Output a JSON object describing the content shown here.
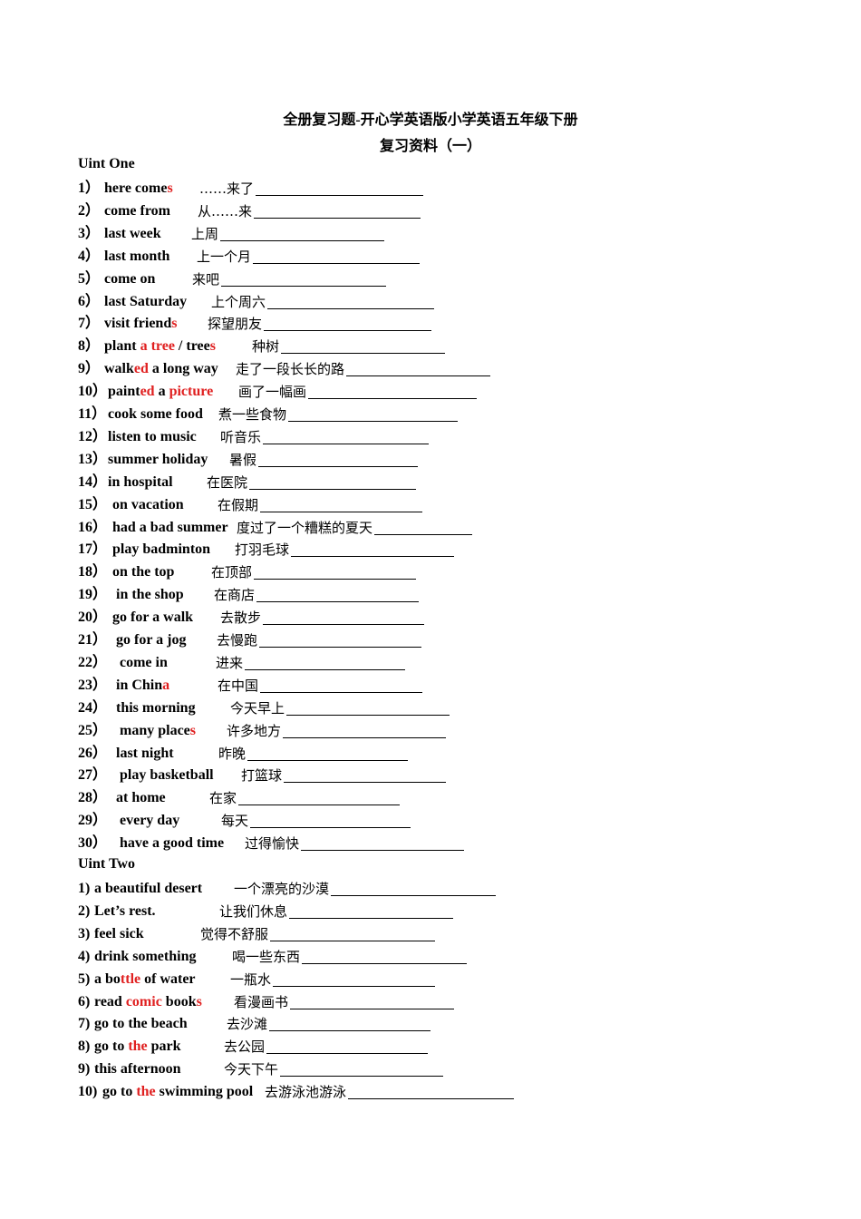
{
  "title": "全册复习题-开心学英语版小学英语五年级下册",
  "subtitle": "复习资料（一）",
  "colors": {
    "highlight": "#e02020",
    "text": "#000000"
  },
  "units": [
    {
      "heading": "Uint One",
      "items": [
        {
          "num": "1）",
          "en": [
            [
              "here come",
              0
            ],
            [
              "s",
              1
            ]
          ],
          "cn": "……来了"
        },
        {
          "num": "2）",
          "en": [
            [
              "come from",
              0
            ]
          ],
          "cn": "从……来"
        },
        {
          "num": "3）",
          "en": [
            [
              "last week",
              0
            ]
          ],
          "cn": "上周"
        },
        {
          "num": "4）",
          "en": [
            [
              "last month",
              0
            ]
          ],
          "cn": "上一个月"
        },
        {
          "num": "5）",
          "en": [
            [
              "come on",
              0
            ]
          ],
          "cn": "来吧"
        },
        {
          "num": "6）",
          "en": [
            [
              "last Saturday",
              0
            ]
          ],
          "cn": "上个周六"
        },
        {
          "num": "7）",
          "en": [
            [
              "visit friend",
              0
            ],
            [
              "s",
              1
            ]
          ],
          "cn": "探望朋友"
        },
        {
          "num": "8）",
          "en": [
            [
              "plant ",
              0
            ],
            [
              "a tree",
              1
            ],
            [
              " / tree",
              0
            ],
            [
              "s",
              1
            ]
          ],
          "cn": "种树"
        },
        {
          "num": "9）",
          "en": [
            [
              "walk",
              0
            ],
            [
              "ed",
              1
            ],
            [
              " a long way",
              0
            ]
          ],
          "cn": "走了一段长长的路"
        },
        {
          "num": "10）",
          "en": [
            [
              "paint",
              0
            ],
            [
              "ed",
              1
            ],
            [
              " a ",
              0
            ],
            [
              "picture",
              1
            ]
          ],
          "cn": "画了一幅画"
        },
        {
          "num": "11）",
          "en": [
            [
              "cook some food",
              0
            ]
          ],
          "cn": "煮一些食物"
        },
        {
          "num": "12）",
          "en": [
            [
              "listen to music",
              0
            ]
          ],
          "cn": "听音乐"
        },
        {
          "num": "13）",
          "en": [
            [
              "summer holiday",
              0
            ]
          ],
          "cn": "暑假"
        },
        {
          "num": "14）",
          "en": [
            [
              "in hospital",
              0
            ]
          ],
          "cn": "在医院"
        },
        {
          "num": "15）",
          "en": [
            [
              "on vacation",
              0
            ]
          ],
          "cn": "在假期"
        },
        {
          "num": "16）",
          "en": [
            [
              "had a bad summer",
              0
            ]
          ],
          "cn": "度过了一个糟糕的夏天"
        },
        {
          "num": "17）",
          "en": [
            [
              "play badminton",
              0
            ]
          ],
          "cn": "打羽毛球"
        },
        {
          "num": "18）",
          "en": [
            [
              "on the top",
              0
            ]
          ],
          "cn": "在顶部"
        },
        {
          "num": "19）",
          "en": [
            [
              "in the shop",
              0
            ]
          ],
          "cn": "在商店"
        },
        {
          "num": "20）",
          "en": [
            [
              "go for a walk",
              0
            ]
          ],
          "cn": "去散步"
        },
        {
          "num": "21）",
          "en": [
            [
              "go for a jog",
              0
            ]
          ],
          "cn": "去慢跑"
        },
        {
          "num": "22）",
          "en": [
            [
              "come in",
              0
            ]
          ],
          "cn": "进来"
        },
        {
          "num": "23）",
          "en": [
            [
              "in Chin",
              0
            ],
            [
              "a",
              1
            ]
          ],
          "cn": "在中国"
        },
        {
          "num": "24）",
          "en": [
            [
              "this morning",
              0
            ]
          ],
          "cn": "今天早上"
        },
        {
          "num": "25）",
          "en": [
            [
              "many place",
              0
            ],
            [
              "s",
              1
            ]
          ],
          "cn": "许多地方"
        },
        {
          "num": "26）",
          "en": [
            [
              "last night",
              0
            ]
          ],
          "cn": "昨晚"
        },
        {
          "num": "27）",
          "en": [
            [
              "play basketball",
              0
            ]
          ],
          "cn": "打篮球"
        },
        {
          "num": "28）",
          "en": [
            [
              "at home",
              0
            ]
          ],
          "cn": "在家"
        },
        {
          "num": "29）",
          "en": [
            [
              "every day",
              0
            ]
          ],
          "cn": "每天"
        },
        {
          "num": "30）",
          "en": [
            [
              "have a good time",
              0
            ]
          ],
          "cn": "过得愉快"
        }
      ]
    },
    {
      "heading": "Uint Two",
      "items": [
        {
          "num": "1)",
          "en": [
            [
              "a beautiful desert",
              0
            ]
          ],
          "cn": "一个漂亮的沙漠"
        },
        {
          "num": "2)",
          "en": [
            [
              "Let’s rest.",
              0
            ]
          ],
          "cn": "让我们休息"
        },
        {
          "num": "3)",
          "en": [
            [
              "feel sick",
              0
            ]
          ],
          "cn": "觉得不舒服"
        },
        {
          "num": "4)",
          "en": [
            [
              "drink something",
              0
            ]
          ],
          "cn": "喝一些东西"
        },
        {
          "num": "5)",
          "en": [
            [
              "a bo",
              0
            ],
            [
              "ttle",
              1
            ],
            [
              " of water",
              0
            ]
          ],
          "cn": "一瓶水"
        },
        {
          "num": "6)",
          "en": [
            [
              "read ",
              0
            ],
            [
              "comic",
              1
            ],
            [
              " book",
              0
            ],
            [
              "s",
              1
            ]
          ],
          "cn": "看漫画书"
        },
        {
          "num": "7)",
          "en": [
            [
              "go to the beach",
              0
            ]
          ],
          "cn": "去沙滩"
        },
        {
          "num": "8)",
          "en": [
            [
              "go to ",
              0
            ],
            [
              "the",
              1
            ],
            [
              " park",
              0
            ]
          ],
          "cn": "去公园"
        },
        {
          "num": "9)",
          "en": [
            [
              "this afternoon",
              0
            ]
          ],
          "cn": "今天下午"
        },
        {
          "num": "10)",
          "en": [
            [
              "go to ",
              0
            ],
            [
              "the",
              1
            ],
            [
              " swimming pool",
              0
            ]
          ],
          "cn": "去游泳池游泳"
        }
      ]
    }
  ]
}
